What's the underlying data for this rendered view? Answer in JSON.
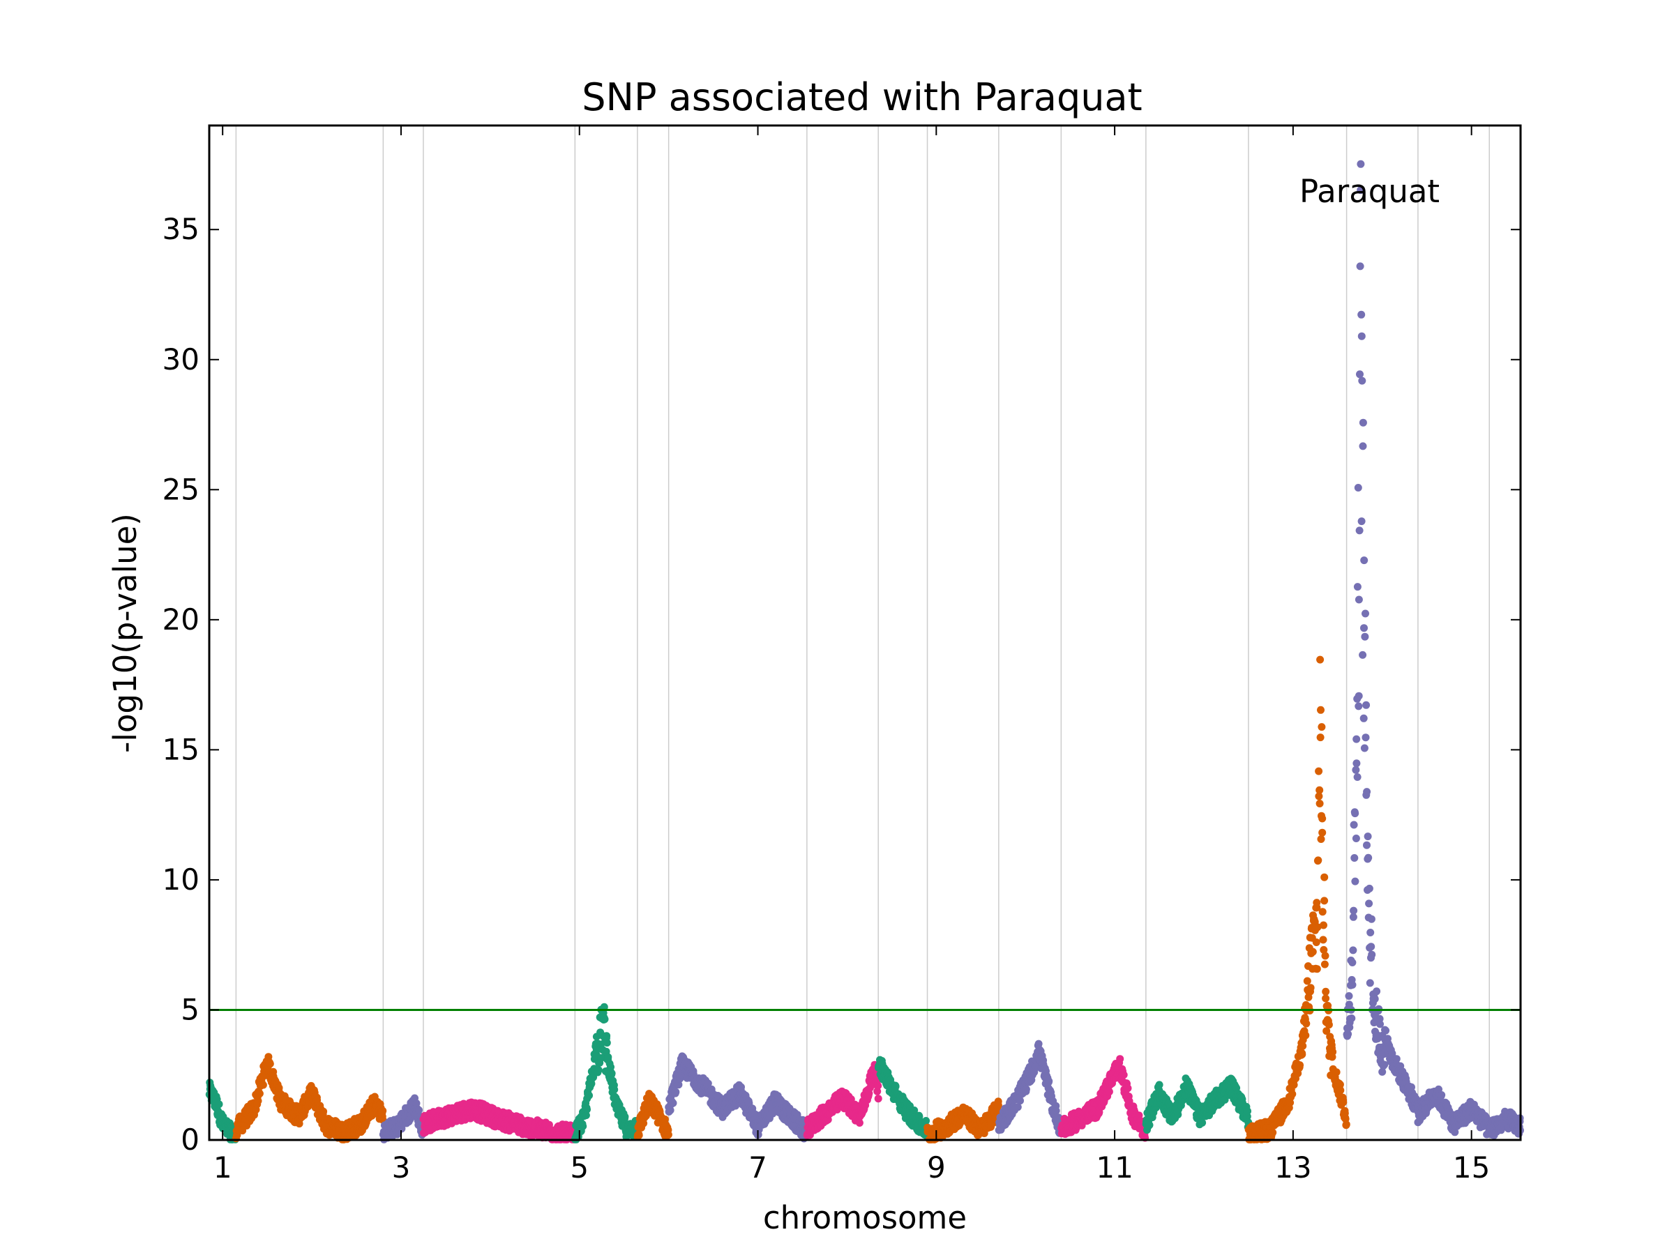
{
  "chart_data": {
    "type": "scatter",
    "title": "SNP associated with Paraquat",
    "xlabel": "chromosome",
    "ylabel": "-log10(p-value)",
    "xlim": [
      0.85,
      15.55
    ],
    "ylim": [
      0,
      39
    ],
    "x_ticks": [
      1,
      3,
      5,
      7,
      9,
      11,
      13,
      15
    ],
    "y_ticks": [
      0,
      5,
      10,
      15,
      20,
      25,
      30,
      35
    ],
    "chromosome_boundaries": [
      1.15,
      2.8,
      3.25,
      4.95,
      5.65,
      6.0,
      7.55,
      8.35,
      8.9,
      9.7,
      10.4,
      11.35,
      12.5,
      13.6,
      14.4,
      15.2
    ],
    "threshold": 5,
    "threshold_color": "#008000",
    "annotation": "Paraquat",
    "grid": "vertical lines at chromosome boundaries",
    "series_colors": [
      "#1b9e77",
      "#d95f02",
      "#7570b3",
      "#e7298a"
    ],
    "segments": [
      {
        "x0": 0.85,
        "x1": 1.15,
        "color": "#1b9e77",
        "profile": [
          [
            0.85,
            1.9
          ],
          [
            0.93,
            1.4
          ],
          [
            1.0,
            0.6
          ],
          [
            1.08,
            0.3
          ],
          [
            1.15,
            0.1
          ]
        ]
      },
      {
        "x0": 1.15,
        "x1": 2.8,
        "color": "#d95f02",
        "profile": [
          [
            1.15,
            0.4
          ],
          [
            1.35,
            1.2
          ],
          [
            1.5,
            3.0
          ],
          [
            1.65,
            1.5
          ],
          [
            1.85,
            0.9
          ],
          [
            2.0,
            1.8
          ],
          [
            2.15,
            0.6
          ],
          [
            2.35,
            0.3
          ],
          [
            2.55,
            0.6
          ],
          [
            2.7,
            1.4
          ],
          [
            2.8,
            0.9
          ]
        ]
      },
      {
        "x0": 2.8,
        "x1": 3.25,
        "color": "#7570b3",
        "profile": [
          [
            2.8,
            0.3
          ],
          [
            2.95,
            0.5
          ],
          [
            3.05,
            0.9
          ],
          [
            3.15,
            1.3
          ],
          [
            3.25,
            0.4
          ]
        ]
      },
      {
        "x0": 3.25,
        "x1": 4.95,
        "color": "#e7298a",
        "profile": [
          [
            3.25,
            0.6
          ],
          [
            3.5,
            0.9
          ],
          [
            3.8,
            1.2
          ],
          [
            4.1,
            0.8
          ],
          [
            4.4,
            0.5
          ],
          [
            4.7,
            0.3
          ],
          [
            4.95,
            0.2
          ]
        ]
      },
      {
        "x0": 4.95,
        "x1": 5.65,
        "color": "#1b9e77",
        "profile": [
          [
            4.95,
            0.2
          ],
          [
            5.05,
            0.8
          ],
          [
            5.15,
            2.6
          ],
          [
            5.22,
            4.5
          ],
          [
            5.27,
            5.5
          ],
          [
            5.32,
            3.0
          ],
          [
            5.42,
            1.2
          ],
          [
            5.55,
            0.3
          ],
          [
            5.65,
            0.6
          ]
        ]
      },
      {
        "x0": 5.65,
        "x1": 6.0,
        "color": "#d95f02",
        "profile": [
          [
            5.65,
            0.3
          ],
          [
            5.78,
            1.5
          ],
          [
            5.88,
            1.0
          ],
          [
            6.0,
            0.2
          ]
        ]
      },
      {
        "x0": 6.0,
        "x1": 7.55,
        "color": "#7570b3",
        "profile": [
          [
            6.0,
            1.2
          ],
          [
            6.15,
            2.9
          ],
          [
            6.4,
            2.0
          ],
          [
            6.6,
            1.2
          ],
          [
            6.8,
            1.8
          ],
          [
            7.0,
            0.5
          ],
          [
            7.2,
            1.5
          ],
          [
            7.35,
            0.9
          ],
          [
            7.55,
            0.3
          ]
        ]
      },
      {
        "x0": 7.55,
        "x1": 8.35,
        "color": "#e7298a",
        "profile": [
          [
            7.55,
            0.4
          ],
          [
            7.75,
            1.0
          ],
          [
            7.95,
            1.6
          ],
          [
            8.15,
            0.9
          ],
          [
            8.3,
            2.7
          ],
          [
            8.35,
            1.8
          ]
        ]
      },
      {
        "x0": 8.35,
        "x1": 8.9,
        "color": "#1b9e77",
        "profile": [
          [
            8.35,
            3.0
          ],
          [
            8.5,
            2.0
          ],
          [
            8.65,
            1.2
          ],
          [
            8.8,
            0.6
          ],
          [
            8.9,
            0.4
          ]
        ]
      },
      {
        "x0": 8.9,
        "x1": 9.7,
        "color": "#d95f02",
        "profile": [
          [
            8.9,
            0.2
          ],
          [
            9.1,
            0.5
          ],
          [
            9.3,
            1.0
          ],
          [
            9.5,
            0.4
          ],
          [
            9.7,
            1.2
          ]
        ]
      },
      {
        "x0": 9.7,
        "x1": 10.4,
        "color": "#7570b3",
        "profile": [
          [
            9.7,
            0.6
          ],
          [
            9.9,
            1.5
          ],
          [
            10.05,
            2.5
          ],
          [
            10.15,
            3.4
          ],
          [
            10.3,
            1.4
          ],
          [
            10.4,
            0.4
          ]
        ]
      },
      {
        "x0": 10.4,
        "x1": 11.35,
        "color": "#e7298a",
        "profile": [
          [
            10.4,
            0.4
          ],
          [
            10.6,
            0.8
          ],
          [
            10.8,
            1.2
          ],
          [
            11.05,
            2.9
          ],
          [
            11.2,
            1.0
          ],
          [
            11.35,
            0.3
          ]
        ]
      },
      {
        "x0": 11.35,
        "x1": 12.5,
        "color": "#1b9e77",
        "profile": [
          [
            11.35,
            0.6
          ],
          [
            11.5,
            1.8
          ],
          [
            11.65,
            0.8
          ],
          [
            11.8,
            2.1
          ],
          [
            11.95,
            0.9
          ],
          [
            12.15,
            1.6
          ],
          [
            12.3,
            2.1
          ],
          [
            12.5,
            0.8
          ]
        ]
      },
      {
        "x0": 12.5,
        "x1": 13.6,
        "color": "#d95f02",
        "profile": [
          [
            12.5,
            0.2
          ],
          [
            12.75,
            0.4
          ],
          [
            12.95,
            1.5
          ],
          [
            13.1,
            3.5
          ],
          [
            13.2,
            8.5
          ],
          [
            13.27,
            10.2
          ],
          [
            13.3,
            20.0
          ],
          [
            13.34,
            11.5
          ],
          [
            13.38,
            5.8
          ],
          [
            13.45,
            2.8
          ],
          [
            13.55,
            1.5
          ],
          [
            13.6,
            0.8
          ]
        ]
      },
      {
        "x0": 13.6,
        "x1": 14.4,
        "color": "#7570b3",
        "profile": [
          [
            13.6,
            4.5
          ],
          [
            13.66,
            8.0
          ],
          [
            13.72,
            20.0
          ],
          [
            13.76,
            38.5
          ],
          [
            13.8,
            22.0
          ],
          [
            13.86,
            10.0
          ],
          [
            13.92,
            6.0
          ],
          [
            14.0,
            4.3
          ],
          [
            14.1,
            3.2
          ],
          [
            14.25,
            2.2
          ],
          [
            14.4,
            1.2
          ]
        ]
      },
      {
        "x0": 14.4,
        "x1": 15.55,
        "color": "#7570b3",
        "profile": [
          [
            14.4,
            1.0
          ],
          [
            14.6,
            1.8
          ],
          [
            14.8,
            0.6
          ],
          [
            15.0,
            1.2
          ],
          [
            15.2,
            0.4
          ],
          [
            15.4,
            0.8
          ],
          [
            15.55,
            0.5
          ]
        ]
      }
    ]
  }
}
